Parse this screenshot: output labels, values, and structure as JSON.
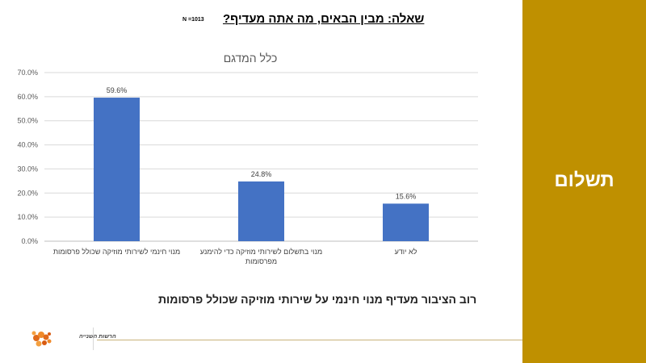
{
  "question": "שאלה: מבין הבאים, מה אתה מעדיף?",
  "sample_size": "N =1013",
  "sidebar": {
    "title": "תשלום"
  },
  "summary": "רוב הציבור מעדיף מנוי חינמי על שירותי מוזיקה שכולל פרסומות",
  "logo": {
    "text": "הרשות השנייה"
  },
  "colors": {
    "accent": "#bf9000",
    "bar": "#4472c4",
    "grid": "#d9d9d9"
  },
  "chart_data": {
    "type": "bar",
    "title": "כלל המדגם",
    "categories": [
      [
        "מנוי חינמי לשירותי מוזיקה שכולל פרסומות"
      ],
      [
        "מנוי בתשלום לשירותי מוזיקה כדי להימנע",
        "מפרסומות"
      ],
      [
        "לא יודע"
      ]
    ],
    "values": [
      59.6,
      24.8,
      15.6
    ],
    "data_labels": [
      "59.6%",
      "24.8%",
      "15.6%"
    ],
    "ylim": [
      0,
      70
    ],
    "yticks": [
      "0.0%",
      "10.0%",
      "20.0%",
      "30.0%",
      "40.0%",
      "50.0%",
      "60.0%",
      "70.0%"
    ],
    "grid": true,
    "legend": false
  }
}
